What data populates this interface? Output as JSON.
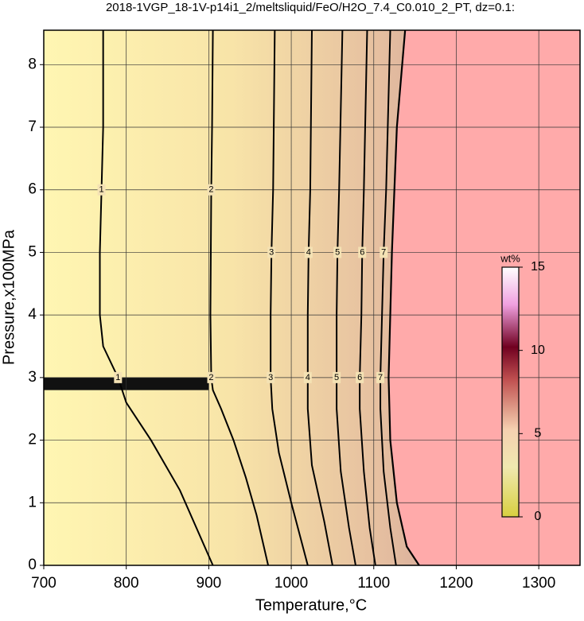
{
  "chart_data": {
    "type": "contour",
    "title": "2018-1VGP_18-1V-p14i1_2/meltsliquid/FeO/H2O_7.4_C0.010_2_PT, dz=0.1:",
    "x_label": "Temperature,°C",
    "y_label": "Pressure,x100MPa",
    "xlim": [
      700,
      1350
    ],
    "ylim": [
      0,
      8.55
    ],
    "xticks": [
      700,
      800,
      900,
      1000,
      1100,
      1200,
      1300
    ],
    "yticks": [
      0,
      1,
      2,
      3,
      4,
      5,
      6,
      7,
      8
    ],
    "grid": true,
    "contours": [
      {
        "level": 1,
        "x": [
          905,
          885,
          865,
          830,
          800,
          790,
          772,
          768,
          768,
          770,
          772,
          772
        ],
        "y": [
          0,
          0.6,
          1.2,
          2.0,
          2.6,
          3.0,
          3.5,
          4,
          5,
          6,
          7,
          8.55
        ]
      },
      {
        "level": 2,
        "x": [
          972,
          958,
          945,
          930,
          915,
          905,
          903,
          902,
          903,
          904,
          905
        ],
        "y": [
          0,
          0.8,
          1.4,
          2,
          2.5,
          2.8,
          3.0,
          4,
          6,
          7,
          8.55
        ]
      },
      {
        "level": 3,
        "x": [
          1020,
          1010,
          1000,
          985,
          977,
          975,
          975,
          976,
          978,
          980
        ],
        "y": [
          0,
          0.5,
          1.0,
          1.8,
          2.5,
          3.0,
          4,
          5,
          6,
          8.55
        ]
      },
      {
        "level": 4,
        "x": [
          1050,
          1040,
          1025,
          1020,
          1020,
          1020,
          1021,
          1023,
          1025
        ],
        "y": [
          0,
          0.7,
          1.6,
          2.5,
          3.0,
          4,
          5,
          6,
          8.55
        ]
      },
      {
        "level": 5,
        "x": [
          1078,
          1070,
          1060,
          1055,
          1055,
          1055,
          1056,
          1058,
          1062
        ],
        "y": [
          0,
          0.6,
          1.5,
          2.5,
          3.0,
          4,
          5,
          6,
          8.55
        ]
      },
      {
        "level": 6,
        "x": [
          1102,
          1095,
          1088,
          1083,
          1083,
          1085,
          1086,
          1088,
          1092
        ],
        "y": [
          0,
          0.6,
          1.5,
          2.5,
          3.0,
          4,
          5,
          6,
          8.55
        ]
      },
      {
        "level": 7,
        "x": [
          1127,
          1120,
          1112,
          1108,
          1108,
          1110,
          1112,
          1115,
          1120
        ],
        "y": [
          0,
          0.6,
          1.5,
          2.5,
          3.0,
          4,
          5,
          6,
          8.55
        ]
      }
    ],
    "boundary": {
      "x": [
        1155,
        1140,
        1128,
        1120,
        1118,
        1120,
        1122,
        1125,
        1128,
        1138
      ],
      "y": [
        0,
        0.3,
        1,
        2,
        3,
        4,
        5,
        6,
        7,
        8.55
      ]
    },
    "colorbar": {
      "label": "wt%",
      "lim": [
        0,
        15
      ],
      "ticks": [
        0,
        5,
        10,
        15
      ]
    }
  }
}
